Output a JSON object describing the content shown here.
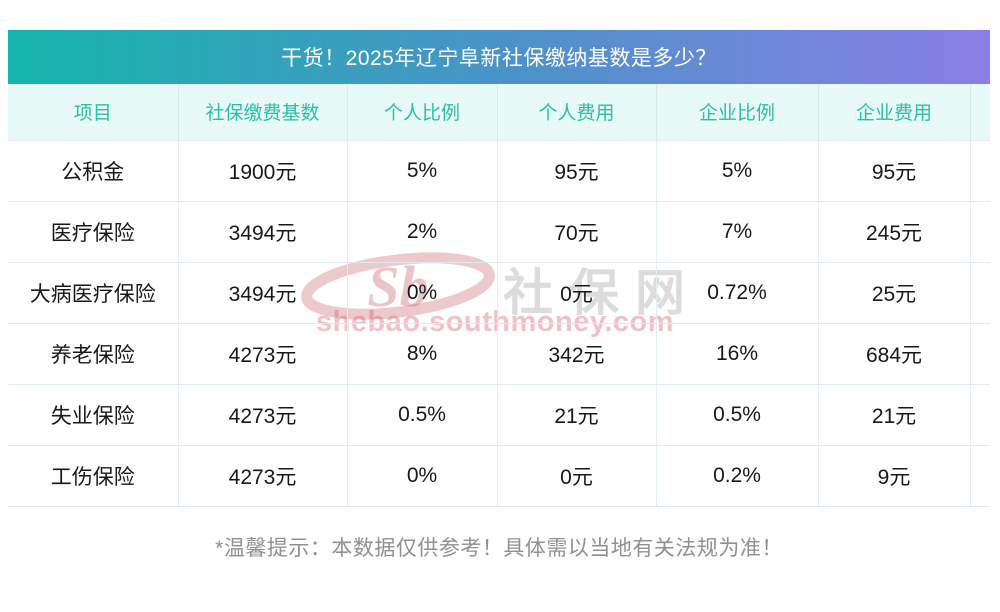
{
  "title": "干货！2025年辽宁阜新社保缴纳基数是多少？",
  "table": {
    "headers": [
      "项目",
      "社保缴费基数",
      "个人比例",
      "个人费用",
      "企业比例",
      "企业费用"
    ],
    "rows": [
      [
        "公积金",
        "1900元",
        "5%",
        "95元",
        "5%",
        "95元"
      ],
      [
        "医疗保险",
        "3494元",
        "2%",
        "70元",
        "7%",
        "245元"
      ],
      [
        "大病医疗保险",
        "3494元",
        "0%",
        "0元",
        "0.72%",
        "25元"
      ],
      [
        "养老保险",
        "4273元",
        "8%",
        "342元",
        "16%",
        "684元"
      ],
      [
        "失业保险",
        "4273元",
        "0.5%",
        "21元",
        "0.5%",
        "21元"
      ],
      [
        "工伤保险",
        "4273元",
        "0%",
        "0元",
        "0.2%",
        "9元"
      ]
    ]
  },
  "watermark": {
    "logo_text": "Sb",
    "site_name": "社保网",
    "url": "shebao.southmoney.com"
  },
  "footer": {
    "note": "*温馨提示：本数据仅供参考！具体需以当地有关法规为准！"
  },
  "colors": {
    "title_gradient_left": "#15b5ab",
    "title_gradient_mid": "#4a93c8",
    "title_gradient_right": "#8b7ee6",
    "header_bg": "#e8faf8",
    "header_text": "#2abfa6",
    "body_text": "#17181a",
    "border": "#dfe9ee",
    "footer_text": "#909090",
    "watermark_red": "rgba(186,60,72,0.30)"
  },
  "chart_data": {
    "type": "table",
    "title": "干货！2025年辽宁阜新社保缴纳基数是多少？",
    "columns": [
      "项目",
      "社保缴费基数",
      "个人比例",
      "个人费用",
      "企业比例",
      "企业费用"
    ],
    "rows": [
      [
        "公积金",
        "1900元",
        "5%",
        "95元",
        "5%",
        "95元"
      ],
      [
        "医疗保险",
        "3494元",
        "2%",
        "70元",
        "7%",
        "245元"
      ],
      [
        "大病医疗保险",
        "3494元",
        "0%",
        "0元",
        "0.72%",
        "25元"
      ],
      [
        "养老保险",
        "4273元",
        "8%",
        "342元",
        "16%",
        "684元"
      ],
      [
        "失业保险",
        "4273元",
        "0.5%",
        "21元",
        "0.5%",
        "21元"
      ],
      [
        "工伤保险",
        "4273元",
        "0%",
        "0元",
        "0.2%",
        "9元"
      ]
    ],
    "note": "*温馨提示：本数据仅供参考！具体需以当地有关法规为准！"
  }
}
